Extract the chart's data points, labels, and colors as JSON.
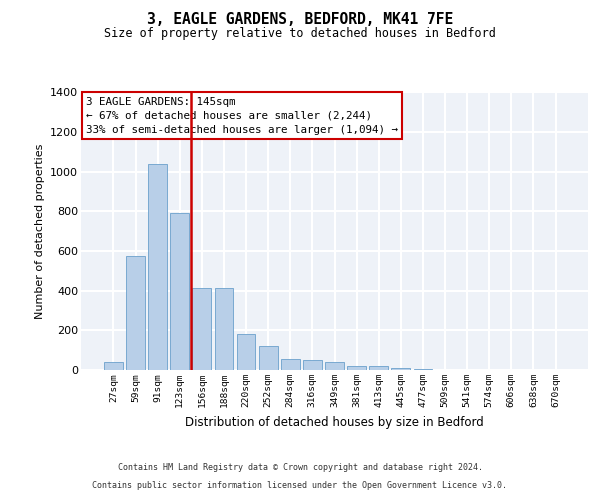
{
  "title_line1": "3, EAGLE GARDENS, BEDFORD, MK41 7FE",
  "title_line2": "Size of property relative to detached houses in Bedford",
  "xlabel": "Distribution of detached houses by size in Bedford",
  "ylabel": "Number of detached properties",
  "categories": [
    "27sqm",
    "59sqm",
    "91sqm",
    "123sqm",
    "156sqm",
    "188sqm",
    "220sqm",
    "252sqm",
    "284sqm",
    "316sqm",
    "349sqm",
    "381sqm",
    "413sqm",
    "445sqm",
    "477sqm",
    "509sqm",
    "541sqm",
    "574sqm",
    "606sqm",
    "638sqm",
    "670sqm"
  ],
  "values": [
    40,
    575,
    1040,
    790,
    415,
    415,
    180,
    120,
    55,
    50,
    40,
    22,
    20,
    10,
    5,
    0,
    0,
    0,
    0,
    0,
    0
  ],
  "bar_color": "#b8cfe8",
  "bar_edge_color": "#6aa0cc",
  "vline_color": "#cc0000",
  "ylim": [
    0,
    1400
  ],
  "yticks": [
    0,
    200,
    400,
    600,
    800,
    1000,
    1200,
    1400
  ],
  "annotation_text": "3 EAGLE GARDENS: 145sqm\n← 67% of detached houses are smaller (2,244)\n33% of semi-detached houses are larger (1,094) →",
  "annotation_box_color": "#ffffff",
  "annotation_box_edge": "#cc0000",
  "footnote1": "Contains HM Land Registry data © Crown copyright and database right 2024.",
  "footnote2": "Contains public sector information licensed under the Open Government Licence v3.0.",
  "background_color": "#eef2f8",
  "grid_color": "#ffffff"
}
